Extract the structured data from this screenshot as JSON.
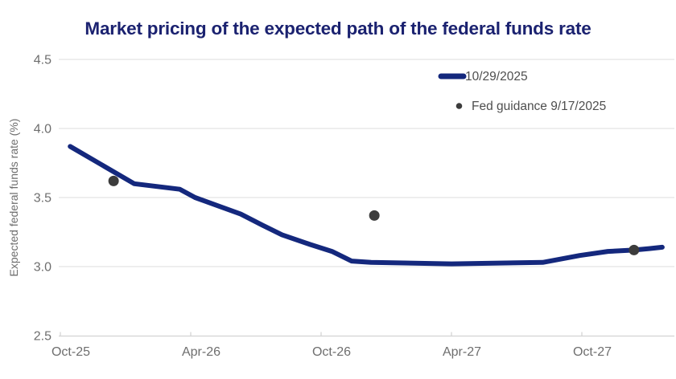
{
  "chart_data": {
    "type": "line",
    "title": "Market pricing of the expected path of the federal funds rate",
    "ylabel": "Expected federal funds rate (%)",
    "x_unit": "months since Oct-2025",
    "ylim": [
      2.5,
      4.5
    ],
    "ytick_values": [
      2.5,
      3.0,
      3.5,
      4.0,
      4.5
    ],
    "ytick_labels": [
      "2.5",
      "3.0",
      "3.5",
      "4.0",
      "4.5"
    ],
    "xtick_months": [
      0,
      6,
      12,
      18,
      24
    ],
    "xtick_labels": [
      "Oct-25",
      "Apr-26",
      "Oct-26",
      "Apr-27",
      "Oct-27"
    ],
    "grid": "horizontal",
    "legend_position": "top-right-inside",
    "series": [
      {
        "name": "10/29/2025",
        "kind": "line",
        "color": "#14287d",
        "points": [
          [
            0.45,
            3.87
          ],
          [
            3.4,
            3.6
          ],
          [
            5.5,
            3.56
          ],
          [
            6.2,
            3.5
          ],
          [
            8.3,
            3.38
          ],
          [
            9.3,
            3.3
          ],
          [
            10.2,
            3.23
          ],
          [
            11.5,
            3.16
          ],
          [
            12.5,
            3.11
          ],
          [
            13.4,
            3.04
          ],
          [
            14.3,
            3.03
          ],
          [
            18.0,
            3.02
          ],
          [
            22.2,
            3.03
          ],
          [
            23.9,
            3.08
          ],
          [
            25.2,
            3.11
          ],
          [
            26.4,
            3.12
          ],
          [
            27.1,
            3.13
          ],
          [
            27.7,
            3.14
          ]
        ]
      },
      {
        "name": "Fed guidance 9/17/2025",
        "kind": "scatter",
        "color": "#3c3c3c",
        "points": [
          [
            2.45,
            3.62
          ],
          [
            14.45,
            3.37
          ],
          [
            26.4,
            3.12
          ]
        ]
      }
    ]
  },
  "colors": {
    "title": "#1b2270",
    "line": "#14287d",
    "dot": "#3c3c3c",
    "grid": "#dcdcdc",
    "axis": "#d2d2d2",
    "tick_text": "#6e6e6e",
    "axis_title_text": "#6e6e6e",
    "legend_text": "#4e4e4e",
    "background": "#ffffff"
  }
}
